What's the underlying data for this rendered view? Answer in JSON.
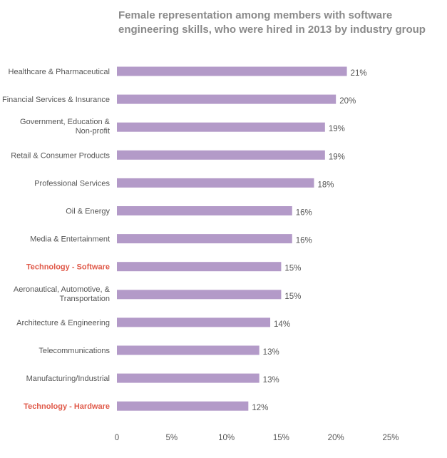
{
  "title_lines": [
    "Female representation among members with software",
    "engineering skills, who were hired in 2013 by industry group"
  ],
  "colors": {
    "bar": "#b39ac8",
    "label": "#555555",
    "highlight": "#e05a4a",
    "value_label": "#555555",
    "axis": "#555555"
  },
  "chart_data": {
    "type": "bar",
    "orientation": "horizontal",
    "title": "Female representation among members with software engineering skills, who were hired in 2013 by industry group",
    "categories": [
      [
        "Healthcare & Pharmaceutical"
      ],
      [
        "Financial Services & Insurance"
      ],
      [
        "Government, Education &",
        "Non-profit"
      ],
      [
        "Retail & Consumer Products"
      ],
      [
        "Professional Services"
      ],
      [
        "Oil & Energy"
      ],
      [
        "Media & Entertainment"
      ],
      [
        "Technology - Software"
      ],
      [
        "Aeronautical, Automotive, &",
        "Transportation"
      ],
      [
        "Architecture & Engineering"
      ],
      [
        "Telecommunications"
      ],
      [
        "Manufacturing/Industrial"
      ],
      [
        "Technology - Hardware"
      ]
    ],
    "values": [
      21,
      20,
      19,
      19,
      18,
      16,
      16,
      15,
      15,
      14,
      13,
      13,
      12
    ],
    "value_labels": [
      "21%",
      "20%",
      "19%",
      "19%",
      "18%",
      "16%",
      "16%",
      "15%",
      "15%",
      "14%",
      "13%",
      "13%",
      "12%"
    ],
    "highlighted": [
      "Technology - Software",
      "Technology - Hardware"
    ],
    "xlim": [
      0,
      25
    ],
    "xticks": [
      0,
      5,
      10,
      15,
      20,
      25
    ],
    "xtick_labels": [
      "0",
      "5%",
      "10%",
      "15%",
      "20%",
      "25%"
    ],
    "xlabel": "",
    "ylabel": "",
    "grid": false,
    "legend": "none"
  }
}
